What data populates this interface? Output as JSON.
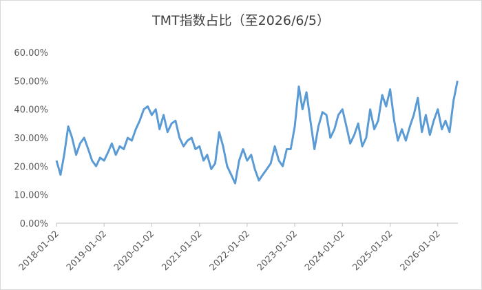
{
  "chart_data": {
    "type": "line",
    "title": "TMT指数占比（至2026/6/5）",
    "x": [
      "2018-01-02",
      "2018-02-02",
      "2018-03-02",
      "2018-04-02",
      "2018-05-02",
      "2018-06-02",
      "2018-07-02",
      "2018-08-02",
      "2018-09-02",
      "2018-10-02",
      "2018-11-02",
      "2018-12-02",
      "2019-01-02",
      "2019-02-02",
      "2019-03-02",
      "2019-04-02",
      "2019-05-02",
      "2019-06-02",
      "2019-07-02",
      "2019-08-02",
      "2019-09-02",
      "2019-10-02",
      "2019-11-02",
      "2019-12-02",
      "2020-01-02",
      "2020-02-02",
      "2020-03-02",
      "2020-04-02",
      "2020-05-02",
      "2020-06-02",
      "2020-07-02",
      "2020-08-02",
      "2020-09-02",
      "2020-10-02",
      "2020-11-02",
      "2020-12-02",
      "2021-01-02",
      "2021-02-02",
      "2021-03-02",
      "2021-04-02",
      "2021-05-02",
      "2021-06-02",
      "2021-07-02",
      "2021-08-02",
      "2021-09-02",
      "2021-10-02",
      "2021-11-02",
      "2021-12-02",
      "2022-01-02",
      "2022-02-02",
      "2022-03-02",
      "2022-04-02",
      "2022-05-02",
      "2022-06-02",
      "2022-07-02",
      "2022-08-02",
      "2022-09-02",
      "2022-10-02",
      "2022-11-02",
      "2022-12-02",
      "2023-01-02",
      "2023-02-02",
      "2023-03-02",
      "2023-04-02",
      "2023-05-02",
      "2023-06-02",
      "2023-07-02",
      "2023-08-02",
      "2023-09-02",
      "2023-10-02",
      "2023-11-02",
      "2023-12-02",
      "2024-01-02",
      "2024-02-02",
      "2024-03-02",
      "2024-04-02",
      "2024-05-02",
      "2024-06-02",
      "2024-07-02",
      "2024-08-02",
      "2024-09-02",
      "2024-10-02",
      "2024-11-02",
      "2024-12-02",
      "2025-01-02",
      "2025-02-02",
      "2025-03-02",
      "2025-04-02",
      "2025-05-02",
      "2025-06-02",
      "2025-07-02",
      "2025-08-02",
      "2025-09-02",
      "2025-10-02",
      "2025-11-02",
      "2025-12-02",
      "2026-01-02",
      "2026-02-02",
      "2026-03-02",
      "2026-04-02",
      "2026-05-02",
      "2026-06-02"
    ],
    "values": [
      22,
      17,
      24,
      34,
      30,
      24,
      28,
      30,
      26,
      22,
      20,
      23,
      22,
      25,
      28,
      24,
      27,
      26,
      30,
      29,
      33,
      36,
      40,
      41,
      38,
      40,
      33,
      38,
      32,
      35,
      36,
      30,
      27,
      29,
      30,
      26,
      27,
      22,
      24,
      19,
      21,
      32,
      27,
      20,
      17,
      14,
      22,
      26,
      22,
      24,
      19,
      15,
      17,
      19,
      21,
      27,
      22,
      20,
      26,
      26,
      34,
      48,
      40,
      46,
      36,
      26,
      34,
      39,
      38,
      30,
      33,
      38,
      40,
      34,
      28,
      31,
      35,
      27,
      30,
      40,
      33,
      36,
      45,
      41,
      47,
      36,
      29,
      33,
      29,
      34,
      38,
      44,
      32,
      38,
      31,
      36,
      40,
      33,
      36,
      32,
      43,
      50
    ],
    "color": "#5b9bd5",
    "xlim": [
      "2018-01-02",
      "2026-06-05"
    ],
    "xticks": [
      "2018-01-02",
      "2019-01-02",
      "2020-01-02",
      "2021-01-02",
      "2022-01-02",
      "2023-01-02",
      "2024-01-02",
      "2025-01-02",
      "2026-01-02"
    ],
    "ylim": [
      0,
      60
    ],
    "yticks": [
      {
        "value": 0,
        "label": "0.00%"
      },
      {
        "value": 10,
        "label": "10.00%"
      },
      {
        "value": 20,
        "label": "20.00%"
      },
      {
        "value": 30,
        "label": "30.00%"
      },
      {
        "value": 40,
        "label": "40.00%"
      },
      {
        "value": 50,
        "label": "50.00%"
      },
      {
        "value": 60,
        "label": "60.00%"
      }
    ],
    "grid": false
  }
}
